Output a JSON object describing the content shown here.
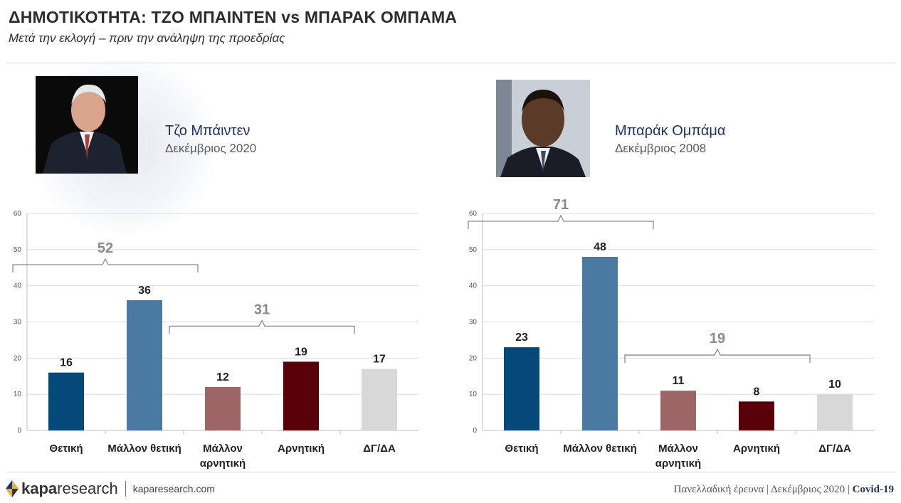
{
  "header": {
    "title": "ΔΗΜΟΤΙΚΟΤΗΤΑ: ΤΖΟ ΜΠΑΙΝΤΕΝ vs ΜΠΑΡΑΚ ΟΜΠΑΜΑ",
    "subtitle": "Μετά την εκλογή – πριν την ανάληψη της προεδρίας"
  },
  "left_person": {
    "name": "Τζο Μπάιντεν",
    "date": "Δεκέμβριος 2020"
  },
  "right_person": {
    "name": "Μπαράκ Ομπάμα",
    "date": "Δεκέμβριος 2008"
  },
  "chart_data": [
    {
      "type": "bar",
      "categories": [
        "Θετική",
        "Μάλλον θετική",
        "Μάλλον αρνητική",
        "Αρνητική",
        "ΔΓ/ΔΑ"
      ],
      "values": [
        16,
        36,
        12,
        19,
        17
      ],
      "ylim": [
        0,
        60
      ],
      "yticks": [
        0,
        10,
        20,
        30,
        40,
        50,
        60
      ],
      "grid": true,
      "colors": [
        "#05487a",
        "#4a7aa2",
        "#9c6666",
        "#5a0008",
        "#d8d8d8"
      ],
      "groups": [
        {
          "label": "52",
          "from": 0,
          "to": 1
        },
        {
          "label": "31",
          "from": 2,
          "to": 3
        }
      ]
    },
    {
      "type": "bar",
      "categories": [
        "Θετική",
        "Μάλλον θετική",
        "Μάλλον αρνητική",
        "Αρνητική",
        "ΔΓ/ΔΑ"
      ],
      "values": [
        23,
        48,
        11,
        8,
        10
      ],
      "ylim": [
        0,
        60
      ],
      "yticks": [
        0,
        10,
        20,
        30,
        40,
        50,
        60
      ],
      "grid": true,
      "colors": [
        "#05487a",
        "#4a7aa2",
        "#9c6666",
        "#5a0008",
        "#d8d8d8"
      ],
      "groups": [
        {
          "label": "71",
          "from": 0,
          "to": 1
        },
        {
          "label": "19",
          "from": 2,
          "to": 3
        }
      ]
    }
  ],
  "footer": {
    "brand_bold": "kapa",
    "brand_light": "research",
    "url": "kaparesearch.com",
    "survey": "Πανελλαδική έρευνα",
    "date": "Δεκέμβριος 2020",
    "topic": "Covid-19"
  }
}
